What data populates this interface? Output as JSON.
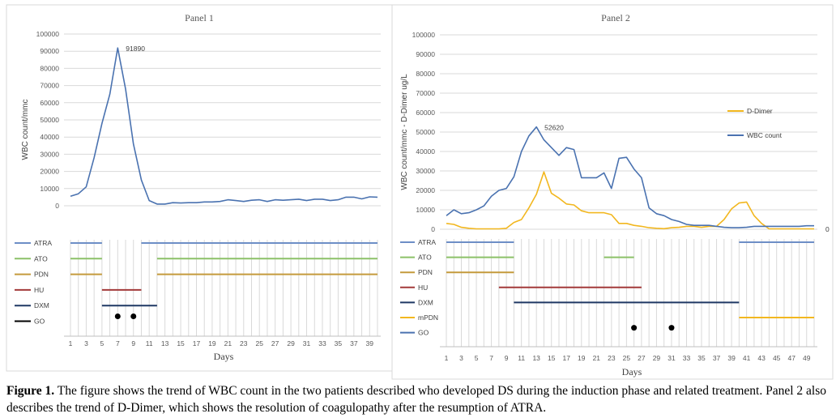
{
  "chart_data": [
    {
      "type": "line",
      "title": "Panel 1",
      "xlabel": "Days",
      "ylabel": "WBC count/mmc",
      "ylim": [
        0,
        100000
      ],
      "yticks": [
        "0",
        "10000",
        "20000",
        "30000",
        "40000",
        "50000",
        "60000",
        "70000",
        "80000",
        "90000",
        "100000"
      ],
      "xlim": [
        1,
        40
      ],
      "xticks": [
        "1",
        "3",
        "5",
        "7",
        "9",
        "11",
        "13",
        "15",
        "17",
        "19",
        "21",
        "23",
        "25",
        "27",
        "29",
        "31",
        "33",
        "35",
        "37",
        "39"
      ],
      "grid": true,
      "series": [
        {
          "name": "WBC count",
          "color": "#4a72b0",
          "x": [
            1,
            2,
            3,
            4,
            5,
            6,
            7,
            8,
            9,
            10,
            11,
            12,
            13,
            14,
            15,
            16,
            17,
            18,
            19,
            20,
            21,
            22,
            23,
            24,
            25,
            26,
            27,
            28,
            29,
            30,
            31,
            32,
            33,
            34,
            35,
            36,
            37,
            38,
            39,
            40
          ],
          "values": [
            5500,
            7000,
            11000,
            28000,
            48000,
            65000,
            91890,
            68000,
            36000,
            15000,
            3000,
            1000,
            1000,
            1800,
            1600,
            1800,
            1800,
            2200,
            2200,
            2500,
            3500,
            3000,
            2500,
            3200,
            3500,
            2500,
            3500,
            3200,
            3500,
            3800,
            3000,
            3800,
            3800,
            3000,
            3500,
            5000,
            5000,
            4000,
            5200,
            5000
          ]
        }
      ],
      "annotations": [
        {
          "text": "91890",
          "x": 7,
          "y": 91890
        }
      ],
      "treatments": [
        {
          "label": "ATRA",
          "color": "#6d8ec6",
          "segments": [
            [
              1,
              5
            ],
            [
              10,
              40
            ]
          ]
        },
        {
          "label": "ATO",
          "color": "#8cc168",
          "segments": [
            [
              1,
              5
            ],
            [
              12,
              40
            ]
          ]
        },
        {
          "label": "PDN",
          "color": "#c49a3c",
          "segments": [
            [
              1,
              5
            ],
            [
              12,
              40
            ]
          ]
        },
        {
          "label": "HU",
          "color": "#a33a3a",
          "segments": [
            [
              5,
              10
            ]
          ]
        },
        {
          "label": "DXM",
          "color": "#1f3864",
          "segments": [
            [
              5,
              12
            ]
          ]
        },
        {
          "label": "GO",
          "color": "#000000",
          "segments": [],
          "dots": [
            7,
            9
          ]
        }
      ]
    },
    {
      "type": "line",
      "title": "Panel 2",
      "xlabel": "Days",
      "ylabel": "WBC count/mmc - D-Dimer ug/L",
      "ylim": [
        0,
        100000
      ],
      "yticks": [
        "0",
        "10000",
        "20000",
        "30000",
        "40000",
        "50000",
        "60000",
        "70000",
        "80000",
        "90000",
        "100000"
      ],
      "xlim": [
        1,
        50
      ],
      "xticks": [
        "1",
        "3",
        "5",
        "7",
        "9",
        "11",
        "13",
        "15",
        "17",
        "19",
        "21",
        "23",
        "25",
        "27",
        "29",
        "31",
        "33",
        "35",
        "37",
        "39",
        "41",
        "43",
        "45",
        "47",
        "49"
      ],
      "grid": true,
      "series": [
        {
          "name": "WBC count",
          "color": "#4a72b0",
          "x": [
            1,
            2,
            3,
            4,
            5,
            6,
            7,
            8,
            9,
            10,
            11,
            12,
            13,
            14,
            15,
            16,
            17,
            18,
            19,
            20,
            21,
            22,
            23,
            24,
            25,
            26,
            27,
            28,
            29,
            30,
            31,
            32,
            33,
            34,
            35,
            36,
            37,
            38,
            39,
            40,
            41,
            42,
            43,
            44,
            45,
            46,
            47,
            48,
            49,
            50
          ],
          "values": [
            7000,
            10000,
            8000,
            8500,
            10000,
            12000,
            17000,
            20000,
            21000,
            27000,
            40000,
            48000,
            52620,
            46000,
            42000,
            38000,
            42000,
            41000,
            26500,
            26500,
            26500,
            29000,
            21000,
            36500,
            37000,
            31000,
            26500,
            11000,
            8000,
            7000,
            5000,
            4000,
            2500,
            2000,
            2000,
            2000,
            1500,
            1000,
            800,
            800,
            1000,
            1500,
            1500,
            1500,
            1500,
            1500,
            1500,
            1500,
            1800,
            1800
          ]
        },
        {
          "name": "D-Dimer",
          "color": "#f2b71f",
          "x": [
            1,
            2,
            3,
            4,
            5,
            6,
            7,
            8,
            9,
            10,
            11,
            12,
            13,
            14,
            15,
            16,
            17,
            18,
            19,
            20,
            21,
            22,
            23,
            24,
            25,
            26,
            27,
            28,
            29,
            30,
            31,
            32,
            33,
            34,
            35,
            36,
            37,
            38,
            39,
            40,
            41,
            42,
            43,
            44,
            45,
            46,
            47,
            48,
            49,
            50
          ],
          "values": [
            3000,
            2500,
            1000,
            500,
            200,
            200,
            200,
            200,
            500,
            3500,
            5000,
            11000,
            18000,
            29500,
            18500,
            16000,
            13000,
            12500,
            9500,
            8500,
            8500,
            8500,
            7500,
            3000,
            3000,
            2000,
            1500,
            800,
            500,
            300,
            800,
            1000,
            1500,
            1500,
            1000,
            1500,
            1500,
            5000,
            10500,
            13500,
            14000,
            7000,
            3000,
            200,
            200,
            200,
            200,
            200,
            200,
            200
          ]
        }
      ],
      "annotations": [
        {
          "text": "52620",
          "x": 13,
          "y": 52620
        },
        {
          "text": "0",
          "x": 50,
          "y": 0
        }
      ],
      "treatments": [
        {
          "label": "ATRA",
          "color": "#6d8ec6",
          "segments": [
            [
              1,
              10
            ],
            [
              40,
              50
            ]
          ]
        },
        {
          "label": "ATO",
          "color": "#8cc168",
          "segments": [
            [
              1,
              10
            ],
            [
              22,
              26
            ]
          ]
        },
        {
          "label": "PDN",
          "color": "#c49a3c",
          "segments": [
            [
              1,
              10
            ]
          ]
        },
        {
          "label": "HU",
          "color": "#a33a3a",
          "segments": [
            [
              8,
              27
            ]
          ]
        },
        {
          "label": "DXM",
          "color": "#1f3864",
          "segments": [
            [
              10,
              40
            ]
          ]
        },
        {
          "label": "mPDN",
          "color": "#f2b71f",
          "segments": [
            [
              40,
              50
            ]
          ]
        },
        {
          "label": "GO",
          "color": "#4a72b0",
          "segments": [],
          "dots": [
            26,
            31
          ]
        }
      ]
    }
  ],
  "caption": {
    "label": "Figure 1.",
    "text": " The figure shows the trend of WBC count in the two patients described who developed DS during the induction phase and related treatment. Panel 2  also describes the trend of D-Dimer, which shows the resolution of coagulopathy after the resumption of ATRA."
  }
}
